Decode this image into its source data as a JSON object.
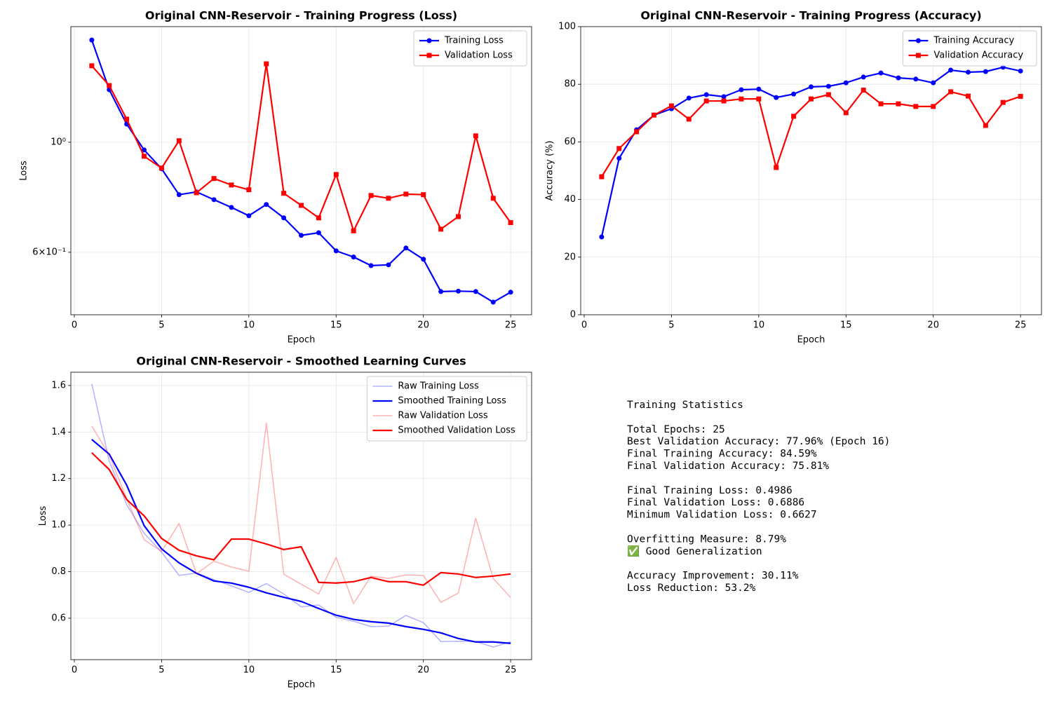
{
  "chart_data": [
    {
      "type": "line",
      "title": "Original CNN-Reservoir - Training Progress (Loss)",
      "x_label": "Epoch",
      "y_label": "Loss",
      "yscale": "log",
      "grid": true,
      "legend": "upper right",
      "x": [
        1,
        2,
        3,
        4,
        5,
        6,
        7,
        8,
        9,
        10,
        11,
        12,
        13,
        14,
        15,
        16,
        17,
        18,
        19,
        20,
        21,
        22,
        23,
        24,
        25
      ],
      "xlim": [
        -0.2,
        26.2
      ],
      "xticks": [
        0,
        5,
        10,
        15,
        20,
        25
      ],
      "ylim": [
        0.449,
        1.71
      ],
      "yticks": [
        {
          "value": 1,
          "label": "10⁰"
        },
        {
          "value": 0.6,
          "label": "6×10⁻¹"
        }
      ],
      "series": [
        {
          "name": "Training Loss",
          "color": "#0000ff",
          "marker": "circle",
          "linewidth": 2.2,
          "opacity": 1,
          "values": [
            1.607,
            1.276,
            1.088,
            0.965,
            0.884,
            0.784,
            0.794,
            0.766,
            0.739,
            0.711,
            0.749,
            0.704,
            0.649,
            0.657,
            0.604,
            0.587,
            0.564,
            0.566,
            0.612,
            0.581,
            0.5,
            0.501,
            0.5,
            0.476,
            0.4986
          ]
        },
        {
          "name": "Validation Loss",
          "color": "#ff0000",
          "marker": "square",
          "linewidth": 2.2,
          "opacity": 1,
          "values": [
            1.426,
            1.301,
            1.113,
            0.937,
            0.887,
            1.007,
            0.791,
            0.845,
            0.82,
            0.802,
            1.439,
            0.789,
            0.746,
            0.704,
            0.861,
            0.6627,
            0.781,
            0.771,
            0.786,
            0.784,
            0.668,
            0.708,
            1.03,
            0.771,
            0.6886
          ]
        }
      ]
    },
    {
      "type": "line",
      "title": "Original CNN-Reservoir - Training Progress (Accuracy)",
      "x_label": "Epoch",
      "y_label": "Accuracy (%)",
      "yscale": "linear",
      "grid": true,
      "legend": "upper right",
      "x": [
        1,
        2,
        3,
        4,
        5,
        6,
        7,
        8,
        9,
        10,
        11,
        12,
        13,
        14,
        15,
        16,
        17,
        18,
        19,
        20,
        21,
        22,
        23,
        24,
        25
      ],
      "xlim": [
        -0.2,
        26.2
      ],
      "xticks": [
        0,
        5,
        10,
        15,
        20,
        25
      ],
      "ylim": [
        0,
        100
      ],
      "yticks": [
        0,
        20,
        40,
        60,
        80,
        100
      ],
      "series": [
        {
          "name": "Training Accuracy",
          "color": "#0000ff",
          "marker": "circle",
          "linewidth": 2.2,
          "opacity": 1,
          "values": [
            27.0,
            54.3,
            64.2,
            69.3,
            71.5,
            75.2,
            76.4,
            75.7,
            78.1,
            78.3,
            75.4,
            76.6,
            79.1,
            79.3,
            80.5,
            82.5,
            83.9,
            82.2,
            81.8,
            80.5,
            84.9,
            84.2,
            84.4,
            85.9,
            84.59
          ]
        },
        {
          "name": "Validation Accuracy",
          "color": "#ff0000",
          "marker": "square",
          "linewidth": 2.2,
          "opacity": 1,
          "values": [
            47.9,
            57.7,
            63.5,
            69.3,
            72.5,
            67.9,
            74.2,
            74.2,
            74.9,
            74.9,
            51.1,
            68.9,
            74.9,
            76.4,
            70.1,
            77.96,
            73.2,
            73.2,
            72.3,
            72.3,
            77.4,
            75.9,
            65.7,
            73.7,
            75.81
          ]
        }
      ]
    },
    {
      "type": "line",
      "title": "Original CNN-Reservoir - Smoothed Learning Curves",
      "x_label": "Epoch",
      "y_label": "Loss",
      "yscale": "linear",
      "grid": true,
      "legend": "upper right",
      "x": [
        1,
        2,
        3,
        4,
        5,
        6,
        7,
        8,
        9,
        10,
        11,
        12,
        13,
        14,
        15,
        16,
        17,
        18,
        19,
        20,
        21,
        22,
        23,
        24,
        25
      ],
      "xlim": [
        -0.2,
        26.2
      ],
      "xticks": [
        0,
        5,
        10,
        15,
        20,
        25
      ],
      "ylim": [
        0.422,
        1.657
      ],
      "yticks": [
        0.6,
        0.8,
        {
          "value": 1,
          "label": "1.0"
        },
        1.2,
        1.4,
        1.6
      ],
      "series": [
        {
          "name": "Raw Training Loss",
          "color": "#0000ff",
          "linewidth": 1.5,
          "opacity": 0.3,
          "values": [
            1.607,
            1.276,
            1.088,
            0.965,
            0.884,
            0.784,
            0.794,
            0.766,
            0.739,
            0.711,
            0.749,
            0.704,
            0.649,
            0.657,
            0.604,
            0.587,
            0.564,
            0.566,
            0.612,
            0.581,
            0.5,
            0.501,
            0.5,
            0.476,
            0.4986
          ]
        },
        {
          "name": "Smoothed Training Loss",
          "color": "#0000ff",
          "linewidth": 2.2,
          "opacity": 1,
          "values": [
            1.368,
            1.305,
            1.172,
            0.998,
            0.898,
            0.838,
            0.793,
            0.76,
            0.751,
            0.733,
            0.709,
            0.69,
            0.672,
            0.642,
            0.613,
            0.595,
            0.585,
            0.579,
            0.564,
            0.552,
            0.537,
            0.513,
            0.498,
            0.498,
            0.492
          ]
        },
        {
          "name": "Raw Validation Loss",
          "color": "#ff0000",
          "linewidth": 1.5,
          "opacity": 0.3,
          "values": [
            1.426,
            1.301,
            1.113,
            0.937,
            0.887,
            1.007,
            0.791,
            0.845,
            0.82,
            0.802,
            1.439,
            0.789,
            0.746,
            0.704,
            0.861,
            0.6627,
            0.781,
            0.771,
            0.786,
            0.784,
            0.668,
            0.708,
            1.03,
            0.771,
            0.6886
          ]
        },
        {
          "name": "Smoothed Validation Loss",
          "color": "#ff0000",
          "linewidth": 2.2,
          "opacity": 1,
          "values": [
            1.311,
            1.239,
            1.11,
            1.04,
            0.943,
            0.892,
            0.868,
            0.851,
            0.94,
            0.94,
            0.919,
            0.895,
            0.907,
            0.754,
            0.751,
            0.757,
            0.775,
            0.757,
            0.757,
            0.742,
            0.796,
            0.79,
            0.775,
            0.781,
            0.79
          ]
        }
      ]
    }
  ],
  "text_panel": {
    "title": "Training Statistics",
    "groups": [
      [
        "Total Epochs: 25",
        "Best Validation Accuracy: 77.96% (Epoch 16)",
        "Final Training Accuracy: 84.59%",
        "Final Validation Accuracy: 75.81%"
      ],
      [
        "Final Training Loss: 0.4986",
        "Final Validation Loss: 0.6886",
        "Minimum Validation Loss: 0.6627"
      ],
      [
        "Overfitting Measure: 8.79%",
        "✅ Good Generalization"
      ],
      [
        "Accuracy Improvement: 30.11%",
        "Loss Reduction: 53.2%"
      ]
    ]
  }
}
